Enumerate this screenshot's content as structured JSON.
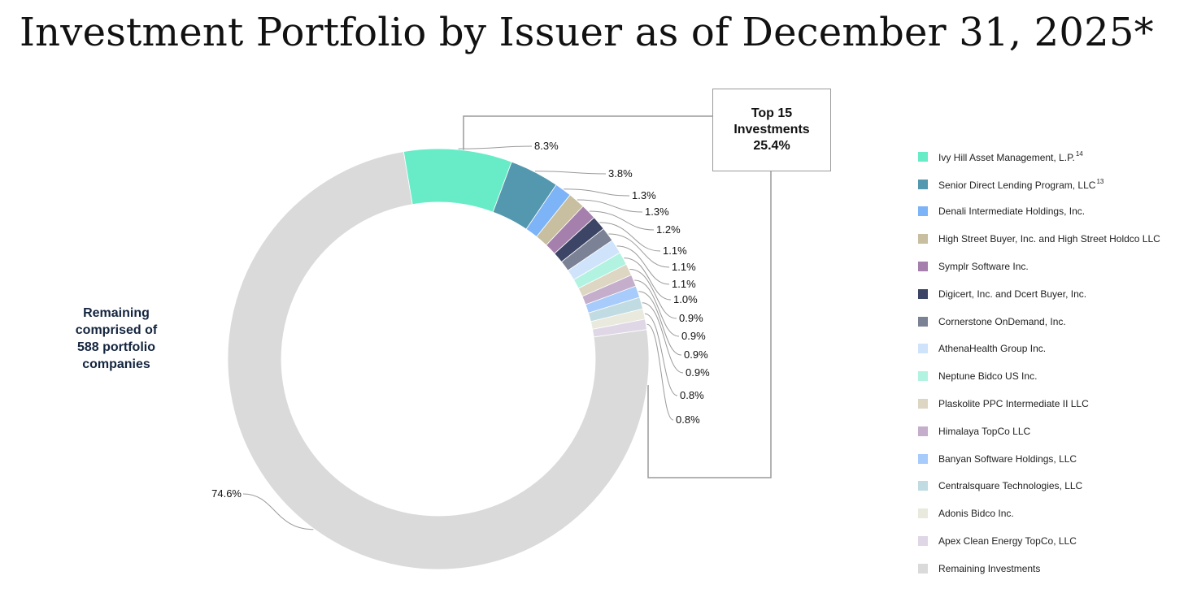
{
  "title": "Investment Portfolio by Issuer as of December 31, 2025*",
  "callout": {
    "line1": "Top 15",
    "line2": "Investments",
    "line3": "25.4%"
  },
  "remaining_note": {
    "line1": "Remaining",
    "line2": "comprised of",
    "line3": "588 portfolio",
    "line4": "companies"
  },
  "chart_data": {
    "type": "pie",
    "donut": true,
    "unit": "%",
    "legend_position": "right",
    "slices": [
      {
        "name": "Ivy Hill Asset Management, L.P.",
        "footnote": "14",
        "value": 8.3,
        "label": "8.3%",
        "color": "#68ecc8"
      },
      {
        "name": "Senior Direct Lending Program, LLC",
        "footnote": "13",
        "value": 3.8,
        "label": "3.8%",
        "color": "#5398ae"
      },
      {
        "name": "Denali Intermediate Holdings, Inc.",
        "value": 1.3,
        "label": "1.3%",
        "color": "#7db3f7"
      },
      {
        "name": "High Street Buyer, Inc. and High Street Holdco LLC",
        "value": 1.3,
        "label": "1.3%",
        "color": "#c8bea0"
      },
      {
        "name": "Symplr Software Inc.",
        "value": 1.2,
        "label": "1.2%",
        "color": "#a580ac"
      },
      {
        "name": "Digicert, Inc. and Dcert Buyer, Inc.",
        "value": 1.1,
        "label": "1.1%",
        "color": "#3c4565"
      },
      {
        "name": "Cornerstone OnDemand, Inc.",
        "value": 1.1,
        "label": "1.1%",
        "color": "#7c8296"
      },
      {
        "name": "AthenaHealth Group Inc.",
        "value": 1.1,
        "label": "1.1%",
        "color": "#cfe3fb"
      },
      {
        "name": "Neptune Bidco US Inc.",
        "value": 1.0,
        "label": "1.0%",
        "color": "#b1f3e0"
      },
      {
        "name": "Plaskolite PPC Intermediate II LLC",
        "value": 0.9,
        "label": "0.9%",
        "color": "#dcd6c3"
      },
      {
        "name": "Himalaya TopCo LLC",
        "value": 0.9,
        "label": "0.9%",
        "color": "#c5aecb"
      },
      {
        "name": "Banyan Software Holdings, LLC",
        "value": 0.9,
        "label": "0.9%",
        "color": "#a7cbfa"
      },
      {
        "name": "Centralsquare Technologies, LLC",
        "value": 0.9,
        "label": "0.9%",
        "color": "#c0dbe2"
      },
      {
        "name": "Adonis Bidco Inc.",
        "value": 0.8,
        "label": "0.8%",
        "color": "#e9e9de"
      },
      {
        "name": "Apex Clean Energy TopCo, LLC",
        "value": 0.8,
        "label": "0.8%",
        "color": "#e0d7e6"
      },
      {
        "name": "Remaining Investments",
        "value": 74.6,
        "label": "74.6%",
        "color": "#dadada"
      }
    ]
  }
}
